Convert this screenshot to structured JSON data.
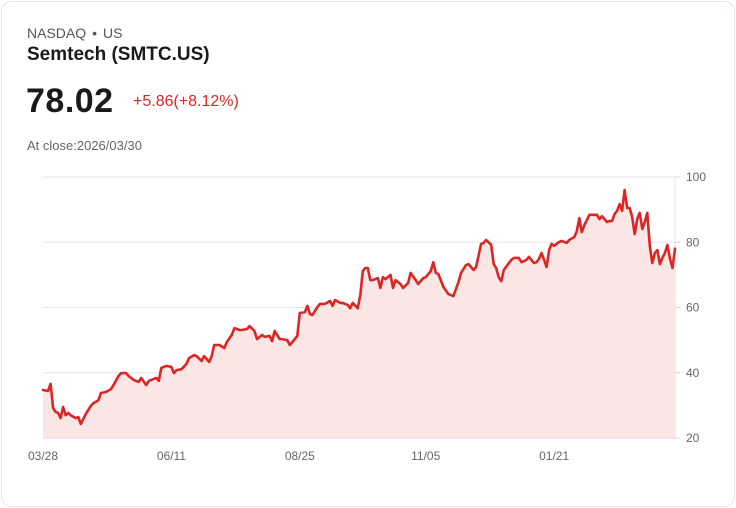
{
  "header": {
    "exchange": "NASDAQ",
    "separator": "•",
    "region": "US",
    "title": "Semtech (SMTC.US)",
    "price": "78.02",
    "change": "+5.86(+8.12%)",
    "close_label": "At close:2026/03/30"
  },
  "colors": {
    "line": "#dc2626",
    "fill": "#fbe6e6",
    "grid": "#e5e5e5",
    "change": "#dc2626"
  },
  "chart_data": {
    "type": "area",
    "title": "Semtech (SMTC.US)",
    "xlabel": "",
    "ylabel": "",
    "ylim": [
      20,
      100
    ],
    "xlim": [
      0,
      251
    ],
    "yticks": [
      {
        "value": 20,
        "label": "20"
      },
      {
        "value": 40,
        "label": "40"
      },
      {
        "value": 60,
        "label": "60"
      },
      {
        "value": 80,
        "label": "80"
      },
      {
        "value": 100,
        "label": "100"
      }
    ],
    "xticks": [
      {
        "value": 0,
        "label": "03/28"
      },
      {
        "value": 51,
        "label": "06/11"
      },
      {
        "value": 102,
        "label": "08/25"
      },
      {
        "value": 152,
        "label": "11/05"
      },
      {
        "value": 203,
        "label": "01/21"
      }
    ],
    "grid": true,
    "x_unit": "trading-day index",
    "points": [
      [
        0,
        34.7
      ],
      [
        2,
        34.4
      ],
      [
        3,
        36.6
      ],
      [
        4,
        29.2
      ],
      [
        5,
        28.0
      ],
      [
        6,
        27.7
      ],
      [
        7,
        26.1
      ],
      [
        8,
        29.5
      ],
      [
        9,
        27.0
      ],
      [
        10,
        27.7
      ],
      [
        11,
        27.0
      ],
      [
        13,
        26.1
      ],
      [
        14,
        26.4
      ],
      [
        15,
        24.3
      ],
      [
        17,
        27.4
      ],
      [
        19,
        29.8
      ],
      [
        20,
        30.7
      ],
      [
        22,
        31.6
      ],
      [
        23,
        33.8
      ],
      [
        25,
        34.1
      ],
      [
        27,
        35.0
      ],
      [
        28,
        36.2
      ],
      [
        30,
        39.0
      ],
      [
        31,
        39.9
      ],
      [
        33,
        39.9
      ],
      [
        34,
        39.0
      ],
      [
        36,
        37.8
      ],
      [
        38,
        37.2
      ],
      [
        39,
        38.4
      ],
      [
        41,
        36.2
      ],
      [
        42,
        37.5
      ],
      [
        44,
        38.1
      ],
      [
        45,
        38.4
      ],
      [
        46,
        37.5
      ],
      [
        47,
        41.5
      ],
      [
        49,
        42.1
      ],
      [
        51,
        41.8
      ],
      [
        52,
        39.9
      ],
      [
        53,
        40.8
      ],
      [
        55,
        41.1
      ],
      [
        57,
        42.7
      ],
      [
        58,
        44.5
      ],
      [
        60,
        45.4
      ],
      [
        61,
        45.1
      ],
      [
        63,
        43.6
      ],
      [
        64,
        45.1
      ],
      [
        66,
        43.3
      ],
      [
        67,
        45.1
      ],
      [
        68,
        48.5
      ],
      [
        70,
        48.5
      ],
      [
        72,
        47.6
      ],
      [
        73,
        49.4
      ],
      [
        75,
        51.6
      ],
      [
        76,
        53.7
      ],
      [
        78,
        53.1
      ],
      [
        79,
        53.1
      ],
      [
        81,
        53.4
      ],
      [
        82,
        54.3
      ],
      [
        84,
        52.8
      ],
      [
        85,
        50.3
      ],
      [
        87,
        51.6
      ],
      [
        88,
        51.0
      ],
      [
        90,
        51.3
      ],
      [
        91,
        49.7
      ],
      [
        92,
        52.8
      ],
      [
        94,
        50.3
      ],
      [
        95,
        50.3
      ],
      [
        97,
        50.0
      ],
      [
        98,
        48.5
      ],
      [
        100,
        50.3
      ],
      [
        101,
        51.3
      ],
      [
        102,
        58.3
      ],
      [
        104,
        58.6
      ],
      [
        105,
        60.5
      ],
      [
        106,
        58.0
      ],
      [
        107,
        57.7
      ],
      [
        109,
        60.2
      ],
      [
        110,
        61.1
      ],
      [
        112,
        61.1
      ],
      [
        114,
        62.0
      ],
      [
        115,
        60.5
      ],
      [
        116,
        62.3
      ],
      [
        118,
        61.4
      ],
      [
        119,
        61.4
      ],
      [
        121,
        60.8
      ],
      [
        122,
        59.8
      ],
      [
        123,
        61.4
      ],
      [
        125,
        59.8
      ],
      [
        126,
        63.8
      ],
      [
        127,
        71.2
      ],
      [
        128,
        72.1
      ],
      [
        129,
        72.1
      ],
      [
        130,
        68.4
      ],
      [
        131,
        68.4
      ],
      [
        133,
        69.0
      ],
      [
        134,
        66.0
      ],
      [
        135,
        69.3
      ],
      [
        136,
        68.7
      ],
      [
        138,
        70.0
      ],
      [
        139,
        66.0
      ],
      [
        140,
        68.4
      ],
      [
        142,
        67.2
      ],
      [
        143,
        66.0
      ],
      [
        145,
        67.5
      ],
      [
        146,
        70.6
      ],
      [
        148,
        68.4
      ],
      [
        149,
        67.2
      ],
      [
        151,
        69.0
      ],
      [
        152,
        69.3
      ],
      [
        154,
        71.2
      ],
      [
        155,
        73.9
      ],
      [
        156,
        70.6
      ],
      [
        157,
        70.3
      ],
      [
        159,
        66.3
      ],
      [
        161,
        64.1
      ],
      [
        163,
        63.5
      ],
      [
        165,
        67.8
      ],
      [
        166,
        70.6
      ],
      [
        168,
        73.0
      ],
      [
        169,
        73.3
      ],
      [
        171,
        71.5
      ],
      [
        172,
        72.4
      ],
      [
        174,
        79.5
      ],
      [
        175,
        79.8
      ],
      [
        176,
        80.7
      ],
      [
        178,
        79.2
      ],
      [
        179,
        73.3
      ],
      [
        180,
        72.1
      ],
      [
        181,
        69.3
      ],
      [
        182,
        68.1
      ],
      [
        183,
        71.5
      ],
      [
        185,
        73.6
      ],
      [
        186,
        74.6
      ],
      [
        187,
        75.2
      ],
      [
        189,
        75.2
      ],
      [
        190,
        73.9
      ],
      [
        192,
        74.6
      ],
      [
        193,
        75.5
      ],
      [
        195,
        73.6
      ],
      [
        196,
        73.9
      ],
      [
        197,
        74.9
      ],
      [
        198,
        76.7
      ],
      [
        199,
        74.6
      ],
      [
        200,
        72.4
      ],
      [
        201,
        77.6
      ],
      [
        202,
        79.5
      ],
      [
        203,
        78.9
      ],
      [
        205,
        80.1
      ],
      [
        206,
        80.4
      ],
      [
        208,
        79.8
      ],
      [
        209,
        80.7
      ],
      [
        211,
        81.6
      ],
      [
        212,
        83.4
      ],
      [
        213,
        87.4
      ],
      [
        214,
        83.1
      ],
      [
        215,
        85.3
      ],
      [
        217,
        88.4
      ],
      [
        218,
        88.4
      ],
      [
        220,
        88.4
      ],
      [
        221,
        87.1
      ],
      [
        222,
        88.0
      ],
      [
        224,
        86.2
      ],
      [
        225,
        86.5
      ],
      [
        226,
        86.5
      ],
      [
        227,
        88.7
      ],
      [
        228,
        89.6
      ],
      [
        229,
        91.7
      ],
      [
        230,
        89.6
      ],
      [
        231,
        96.0
      ],
      [
        232,
        90.5
      ],
      [
        233,
        90.5
      ],
      [
        234,
        87.7
      ],
      [
        235,
        82.5
      ],
      [
        236,
        87.1
      ],
      [
        237,
        89.0
      ],
      [
        238,
        84.1
      ],
      [
        239,
        86.2
      ],
      [
        240,
        89.0
      ],
      [
        241,
        78.9
      ],
      [
        242,
        73.6
      ],
      [
        243,
        76.7
      ],
      [
        244,
        77.6
      ],
      [
        245,
        73.3
      ],
      [
        246,
        75.2
      ],
      [
        247,
        76.7
      ],
      [
        248,
        79.2
      ],
      [
        249,
        74.9
      ],
      [
        250,
        72.1
      ],
      [
        251,
        78.02
      ]
    ]
  }
}
